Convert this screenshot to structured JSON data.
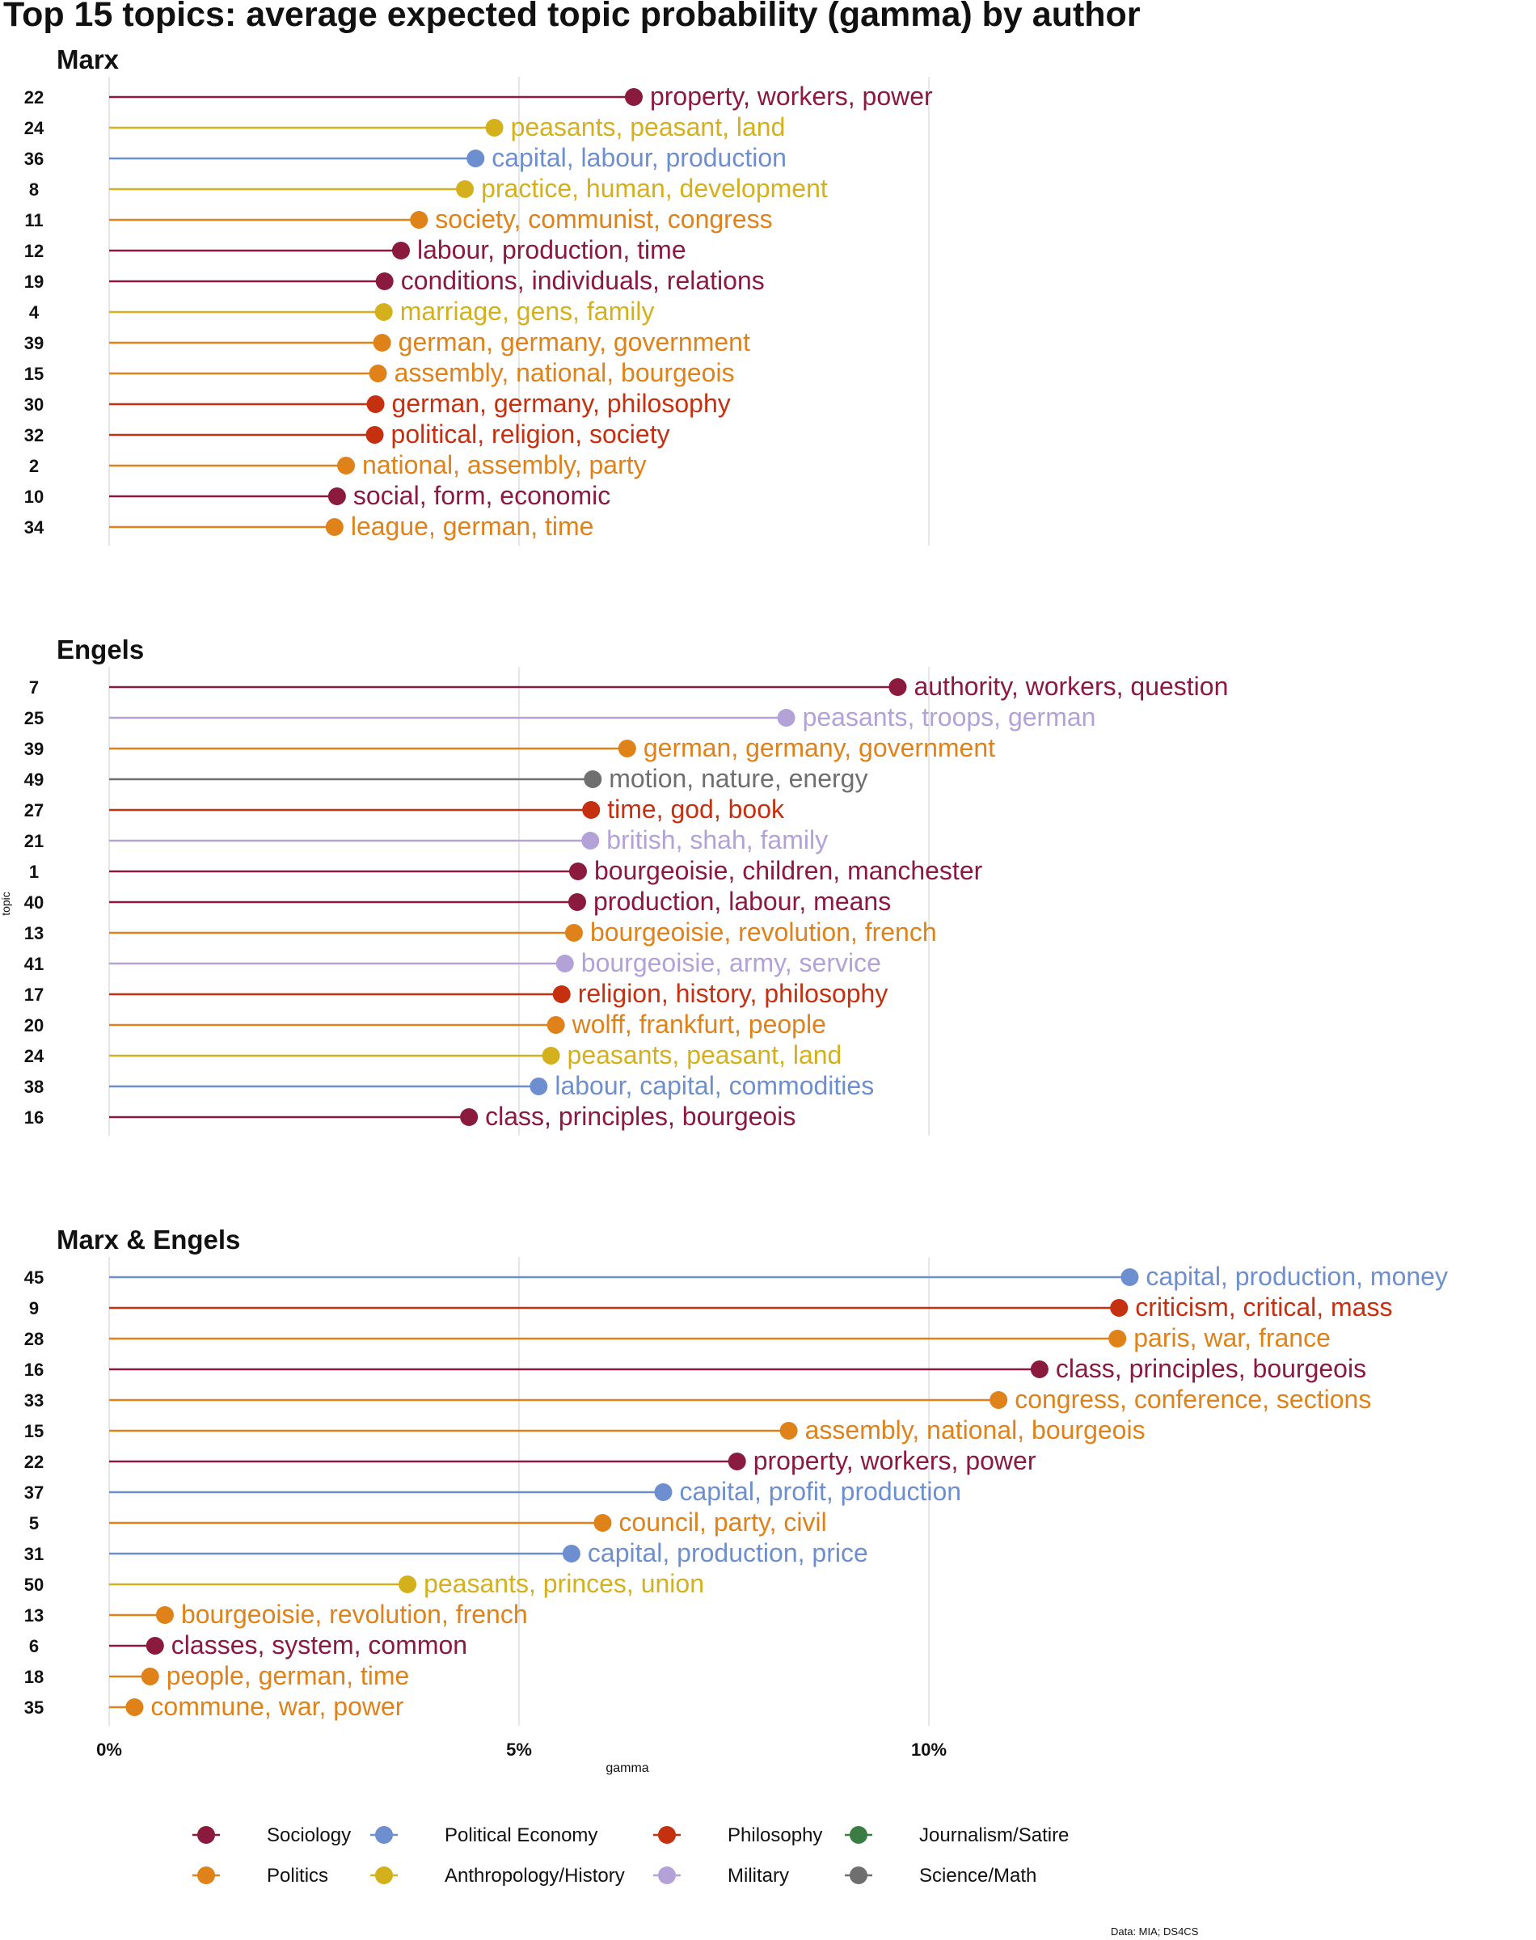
{
  "title": "Top 15 topics: average expected topic probability (gamma) by author",
  "colors": {
    "Sociology": "#8b1a3f",
    "Political Economy": "#6e8fcf",
    "Philosophy": "#c53010",
    "Journalism/Satire": "#3a7d44",
    "Politics": "#e0821a",
    "Anthropology/History": "#d4b11c",
    "Military": "#b3a2d8",
    "Science/Math": "#6f6f6f",
    "grid": "#e6e6e6",
    "text": "#111111"
  },
  "chart_data": {
    "type": "lollipop",
    "xlabel": "gamma",
    "ylabel": "topic",
    "xlim": [
      0,
      0.13
    ],
    "xticks": [
      {
        "value": 0,
        "label": "0%"
      },
      {
        "value": 0.05,
        "label": "5%"
      },
      {
        "value": 0.1,
        "label": "10%"
      }
    ],
    "grid": true,
    "legend_position": "bottom",
    "legend": [
      "Sociology",
      "Political Economy",
      "Philosophy",
      "Journalism/Satire",
      "Politics",
      "Anthropology/History",
      "Military",
      "Science/Math"
    ],
    "panels": [
      {
        "name": "Marx",
        "items": [
          {
            "topic": "22",
            "label": "property, workers, power",
            "value": 0.064,
            "category": "Sociology"
          },
          {
            "topic": "24",
            "label": "peasants, peasant, land",
            "value": 0.047,
            "category": "Anthropology/History"
          },
          {
            "topic": "36",
            "label": "capital, labour, production",
            "value": 0.0447,
            "category": "Political Economy"
          },
          {
            "topic": "8",
            "label": "practice, human, development",
            "value": 0.0434,
            "category": "Anthropology/History"
          },
          {
            "topic": "11",
            "label": "society, communist, congress",
            "value": 0.0378,
            "category": "Politics"
          },
          {
            "topic": "12",
            "label": "labour, production, time",
            "value": 0.0356,
            "category": "Sociology"
          },
          {
            "topic": "19",
            "label": "conditions, individuals, relations",
            "value": 0.0336,
            "category": "Sociology"
          },
          {
            "topic": "4",
            "label": "marriage, gens, family",
            "value": 0.0335,
            "category": "Anthropology/History"
          },
          {
            "topic": "39",
            "label": "german, germany, government",
            "value": 0.0333,
            "category": "Politics"
          },
          {
            "topic": "15",
            "label": "assembly, national, bourgeois",
            "value": 0.0328,
            "category": "Politics"
          },
          {
            "topic": "30",
            "label": "german, germany, philosophy",
            "value": 0.0325,
            "category": "Philosophy"
          },
          {
            "topic": "32",
            "label": "political, religion, society",
            "value": 0.0324,
            "category": "Philosophy"
          },
          {
            "topic": "2",
            "label": "national, assembly, party",
            "value": 0.0289,
            "category": "Politics"
          },
          {
            "topic": "10",
            "label": "social, form, economic",
            "value": 0.0278,
            "category": "Sociology"
          },
          {
            "topic": "34",
            "label": "league, german, time",
            "value": 0.0275,
            "category": "Politics"
          }
        ]
      },
      {
        "name": "Engels",
        "items": [
          {
            "topic": "7",
            "label": "authority, workers, question",
            "value": 0.0962,
            "category": "Sociology"
          },
          {
            "topic": "25",
            "label": "peasants, troops, german",
            "value": 0.0826,
            "category": "Military"
          },
          {
            "topic": "39",
            "label": "german, germany, government",
            "value": 0.0632,
            "category": "Politics"
          },
          {
            "topic": "49",
            "label": "motion, nature, energy",
            "value": 0.059,
            "category": "Science/Math"
          },
          {
            "topic": "27",
            "label": "time, god, book",
            "value": 0.0588,
            "category": "Philosophy"
          },
          {
            "topic": "21",
            "label": "british, shah, family",
            "value": 0.0587,
            "category": "Military"
          },
          {
            "topic": "1",
            "label": "bourgeoisie, children, manchester",
            "value": 0.0572,
            "category": "Sociology"
          },
          {
            "topic": "40",
            "label": "production, labour, means",
            "value": 0.0571,
            "category": "Sociology"
          },
          {
            "topic": "13",
            "label": "bourgeoisie, revolution, french",
            "value": 0.0567,
            "category": "Politics"
          },
          {
            "topic": "41",
            "label": "bourgeoisie, army, service",
            "value": 0.0556,
            "category": "Military"
          },
          {
            "topic": "17",
            "label": "religion, history, philosophy",
            "value": 0.0552,
            "category": "Philosophy"
          },
          {
            "topic": "20",
            "label": "wolff, frankfurt, people",
            "value": 0.0545,
            "category": "Politics"
          },
          {
            "topic": "24",
            "label": "peasants, peasant, land",
            "value": 0.0539,
            "category": "Anthropology/History"
          },
          {
            "topic": "38",
            "label": "labour, capital, commodities",
            "value": 0.0524,
            "category": "Political Economy"
          },
          {
            "topic": "16",
            "label": "class, principles, bourgeois",
            "value": 0.0439,
            "category": "Sociology"
          }
        ]
      },
      {
        "name": "Marx & Engels",
        "items": [
          {
            "topic": "45",
            "label": "capital, production, money",
            "value": 0.1245,
            "category": "Political Economy"
          },
          {
            "topic": "9",
            "label": "criticism, critical, mass",
            "value": 0.1232,
            "category": "Philosophy"
          },
          {
            "topic": "28",
            "label": "paris, war, france",
            "value": 0.123,
            "category": "Politics"
          },
          {
            "topic": "16",
            "label": "class, principles, bourgeois",
            "value": 0.1135,
            "category": "Sociology"
          },
          {
            "topic": "33",
            "label": "congress, conference, sections",
            "value": 0.1085,
            "category": "Politics"
          },
          {
            "topic": "15",
            "label": "assembly, national, bourgeois",
            "value": 0.0829,
            "category": "Politics"
          },
          {
            "topic": "22",
            "label": "property, workers, power",
            "value": 0.0766,
            "category": "Sociology"
          },
          {
            "topic": "37",
            "label": "capital, profit, production",
            "value": 0.0676,
            "category": "Political Economy"
          },
          {
            "topic": "5",
            "label": "council, party, civil",
            "value": 0.0602,
            "category": "Politics"
          },
          {
            "topic": "31",
            "label": "capital, production, price",
            "value": 0.0564,
            "category": "Political Economy"
          },
          {
            "topic": "50",
            "label": "peasants, princes, union",
            "value": 0.0364,
            "category": "Anthropology/History"
          },
          {
            "topic": "13",
            "label": "bourgeoisie, revolution, french",
            "value": 0.0068,
            "category": "Politics"
          },
          {
            "topic": "6",
            "label": "classes, system, common",
            "value": 0.0056,
            "category": "Sociology"
          },
          {
            "topic": "18",
            "label": "people, german, time",
            "value": 0.005,
            "category": "Politics"
          },
          {
            "topic": "35",
            "label": "commune, war, power",
            "value": 0.0031,
            "category": "Politics"
          }
        ]
      }
    ]
  },
  "caption": "Data: MIA; DS4CS"
}
